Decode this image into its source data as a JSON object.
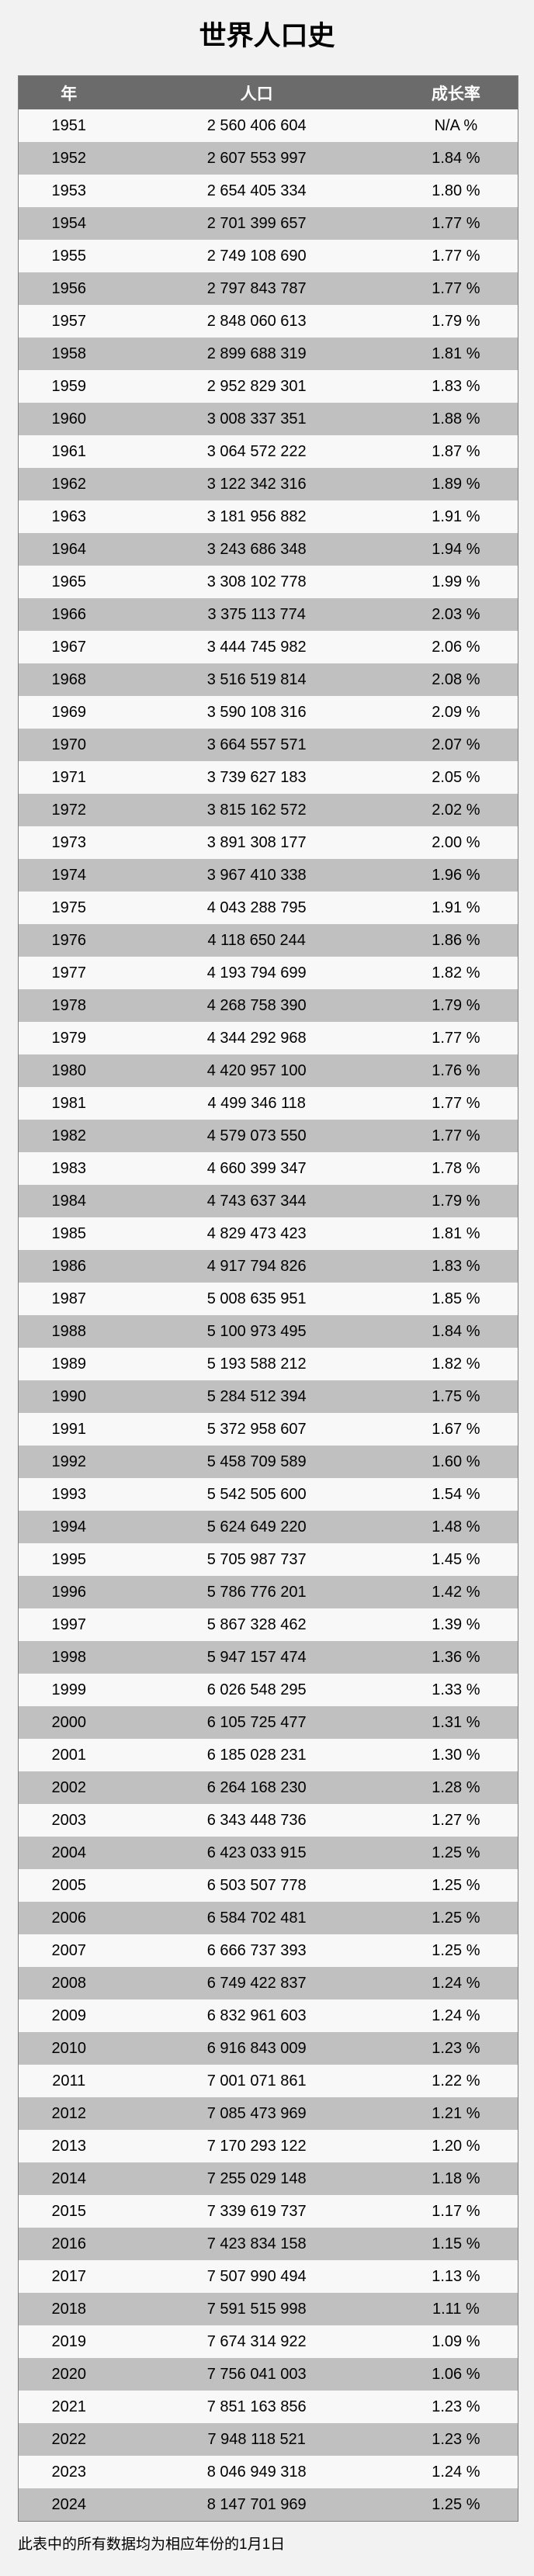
{
  "title": "世界人口史",
  "footnote": "此表中的所有数据均为相应年份的1月1日",
  "colors": {
    "page_bg": "#f2f2f2",
    "header_bg": "#6b6b6b",
    "header_text": "#ffffff",
    "row_light": "#f8f8f8",
    "row_dark": "#c0c0c0",
    "border": "#7f7f7f",
    "text": "#000000"
  },
  "chart_data": {
    "type": "table",
    "title": "世界人口史",
    "columns": [
      "年",
      "人口",
      "成长率"
    ],
    "rows": [
      [
        "1951",
        "2 560 406 604",
        "N/A %"
      ],
      [
        "1952",
        "2 607 553 997",
        "1.84 %"
      ],
      [
        "1953",
        "2 654 405 334",
        "1.80 %"
      ],
      [
        "1954",
        "2 701 399 657",
        "1.77 %"
      ],
      [
        "1955",
        "2 749 108 690",
        "1.77 %"
      ],
      [
        "1956",
        "2 797 843 787",
        "1.77 %"
      ],
      [
        "1957",
        "2 848 060 613",
        "1.79 %"
      ],
      [
        "1958",
        "2 899 688 319",
        "1.81 %"
      ],
      [
        "1959",
        "2 952 829 301",
        "1.83 %"
      ],
      [
        "1960",
        "3 008 337 351",
        "1.88 %"
      ],
      [
        "1961",
        "3 064 572 222",
        "1.87 %"
      ],
      [
        "1962",
        "3 122 342 316",
        "1.89 %"
      ],
      [
        "1963",
        "3 181 956 882",
        "1.91 %"
      ],
      [
        "1964",
        "3 243 686 348",
        "1.94 %"
      ],
      [
        "1965",
        "3 308 102 778",
        "1.99 %"
      ],
      [
        "1966",
        "3 375 113 774",
        "2.03 %"
      ],
      [
        "1967",
        "3 444 745 982",
        "2.06 %"
      ],
      [
        "1968",
        "3 516 519 814",
        "2.08 %"
      ],
      [
        "1969",
        "3 590 108 316",
        "2.09 %"
      ],
      [
        "1970",
        "3 664 557 571",
        "2.07 %"
      ],
      [
        "1971",
        "3 739 627 183",
        "2.05 %"
      ],
      [
        "1972",
        "3 815 162 572",
        "2.02 %"
      ],
      [
        "1973",
        "3 891 308 177",
        "2.00 %"
      ],
      [
        "1974",
        "3 967 410 338",
        "1.96 %"
      ],
      [
        "1975",
        "4 043 288 795",
        "1.91 %"
      ],
      [
        "1976",
        "4 118 650 244",
        "1.86 %"
      ],
      [
        "1977",
        "4 193 794 699",
        "1.82 %"
      ],
      [
        "1978",
        "4 268 758 390",
        "1.79 %"
      ],
      [
        "1979",
        "4 344 292 968",
        "1.77 %"
      ],
      [
        "1980",
        "4 420 957 100",
        "1.76 %"
      ],
      [
        "1981",
        "4 499 346 118",
        "1.77 %"
      ],
      [
        "1982",
        "4 579 073 550",
        "1.77 %"
      ],
      [
        "1983",
        "4 660 399 347",
        "1.78 %"
      ],
      [
        "1984",
        "4 743 637 344",
        "1.79 %"
      ],
      [
        "1985",
        "4 829 473 423",
        "1.81 %"
      ],
      [
        "1986",
        "4 917 794 826",
        "1.83 %"
      ],
      [
        "1987",
        "5 008 635 951",
        "1.85 %"
      ],
      [
        "1988",
        "5 100 973 495",
        "1.84 %"
      ],
      [
        "1989",
        "5 193 588 212",
        "1.82 %"
      ],
      [
        "1990",
        "5 284 512 394",
        "1.75 %"
      ],
      [
        "1991",
        "5 372 958 607",
        "1.67 %"
      ],
      [
        "1992",
        "5 458 709 589",
        "1.60 %"
      ],
      [
        "1993",
        "5 542 505 600",
        "1.54 %"
      ],
      [
        "1994",
        "5 624 649 220",
        "1.48 %"
      ],
      [
        "1995",
        "5 705 987 737",
        "1.45 %"
      ],
      [
        "1996",
        "5 786 776 201",
        "1.42 %"
      ],
      [
        "1997",
        "5 867 328 462",
        "1.39 %"
      ],
      [
        "1998",
        "5 947 157 474",
        "1.36 %"
      ],
      [
        "1999",
        "6 026 548 295",
        "1.33 %"
      ],
      [
        "2000",
        "6 105 725 477",
        "1.31 %"
      ],
      [
        "2001",
        "6 185 028 231",
        "1.30 %"
      ],
      [
        "2002",
        "6 264 168 230",
        "1.28 %"
      ],
      [
        "2003",
        "6 343 448 736",
        "1.27 %"
      ],
      [
        "2004",
        "6 423 033 915",
        "1.25 %"
      ],
      [
        "2005",
        "6 503 507 778",
        "1.25 %"
      ],
      [
        "2006",
        "6 584 702 481",
        "1.25 %"
      ],
      [
        "2007",
        "6 666 737 393",
        "1.25 %"
      ],
      [
        "2008",
        "6 749 422 837",
        "1.24 %"
      ],
      [
        "2009",
        "6 832 961 603",
        "1.24 %"
      ],
      [
        "2010",
        "6 916 843 009",
        "1.23 %"
      ],
      [
        "2011",
        "7 001 071 861",
        "1.22 %"
      ],
      [
        "2012",
        "7 085 473 969",
        "1.21 %"
      ],
      [
        "2013",
        "7 170 293 122",
        "1.20 %"
      ],
      [
        "2014",
        "7 255 029 148",
        "1.18 %"
      ],
      [
        "2015",
        "7 339 619 737",
        "1.17 %"
      ],
      [
        "2016",
        "7 423 834 158",
        "1.15 %"
      ],
      [
        "2017",
        "7 507 990 494",
        "1.13 %"
      ],
      [
        "2018",
        "7 591 515 998",
        "1.11 %"
      ],
      [
        "2019",
        "7 674 314 922",
        "1.09 %"
      ],
      [
        "2020",
        "7 756 041 003",
        "1.06 %"
      ],
      [
        "2021",
        "7 851 163 856",
        "1.23 %"
      ],
      [
        "2022",
        "7 948 118 521",
        "1.23 %"
      ],
      [
        "2023",
        "8 046 949 318",
        "1.24 %"
      ],
      [
        "2024",
        "8 147 701 969",
        "1.25 %"
      ]
    ],
    "layout": {
      "header_style": "dark-gray banner, white bold text",
      "row_striping": "odd rows light (#f8f8f8), even rows gray (#c0c0c0)",
      "alignment": "all columns centered"
    }
  }
}
